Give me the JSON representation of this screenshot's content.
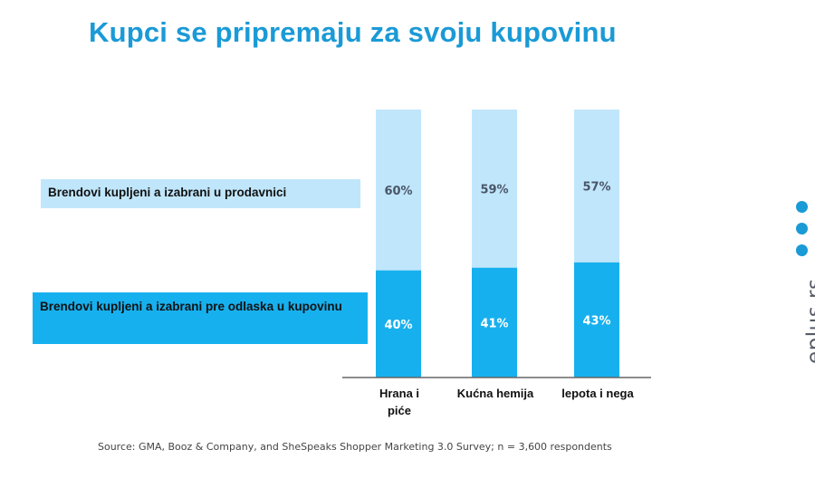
{
  "title": "Kupci se pripremaju za svoju kupovinu",
  "legend": {
    "top": "Brendovi kupljeni a izabrani u prodavnici",
    "bottom": "Brendovi kupljeni a izabrani pre odlaska u kupovinu"
  },
  "source": "Source: GMA, Booz & Company, and SheSpeaks Shopper Marketing 3.0 Survey; n = 3,600 respondents",
  "brand": {
    "text": "eplus.rs",
    "dots_icon": "three-dots-icon"
  },
  "colors": {
    "title": "#1a9ad6",
    "light": "#c0e6fb",
    "dark": "#17b0ee",
    "brand_dot": "#1a9ad6"
  },
  "chart_data": {
    "type": "bar",
    "stacked": true,
    "categories": [
      "Hrana i piće",
      "Kućna hemija",
      "lepota i nega"
    ],
    "category_lines": [
      [
        "Hrana i",
        "piće"
      ],
      [
        "Kućna hemija"
      ],
      [
        "lepota i nega"
      ]
    ],
    "series": [
      {
        "name": "Brendovi kupljeni a izabrani pre odlaska u kupovinu",
        "values": [
          40,
          41,
          43
        ],
        "labels": [
          "40%",
          "41%",
          "43%"
        ]
      },
      {
        "name": "Brendovi kupljeni a izabrani u prodavnici",
        "values": [
          60,
          59,
          57
        ],
        "labels": [
          "60%",
          "59%",
          "57%"
        ]
      }
    ],
    "ylim": [
      0,
      100
    ],
    "grid": false,
    "legend_position": "left"
  }
}
